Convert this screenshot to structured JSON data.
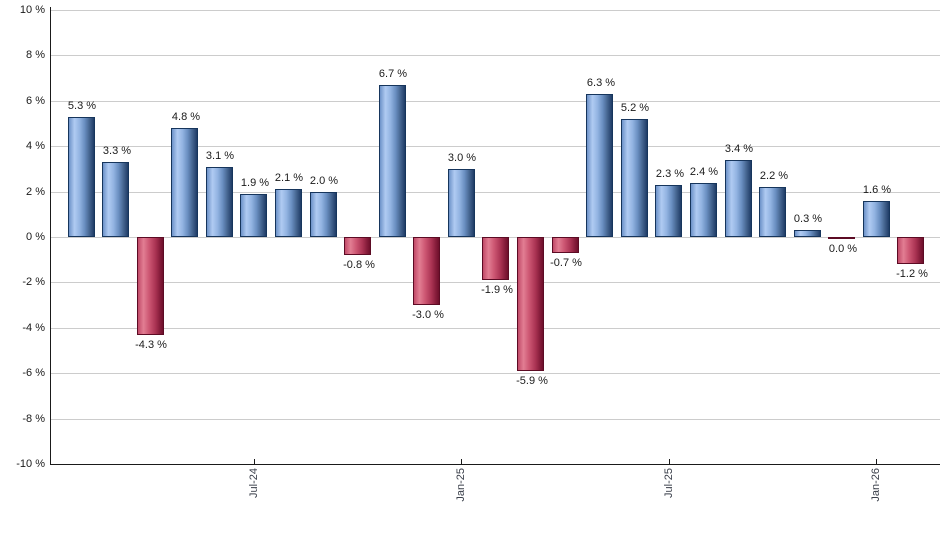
{
  "chart_data": {
    "type": "bar",
    "title": "",
    "xlabel": "",
    "ylabel": "",
    "ylim": [
      -10,
      10
    ],
    "grid": true,
    "legend": "none",
    "values": [
      5.3,
      3.3,
      -4.3,
      4.8,
      3.1,
      1.9,
      2.1,
      2.0,
      -0.8,
      6.7,
      -3.0,
      3.0,
      -1.9,
      -5.9,
      -0.7,
      6.3,
      5.2,
      2.3,
      2.4,
      3.4,
      2.2,
      0.3,
      0.0,
      1.6,
      -1.2
    ],
    "bar_labels": [
      "5.3 %",
      "3.3 %",
      "-4.3 %",
      "4.8 %",
      "3.1 %",
      "1.9 %",
      "2.1 %",
      "2.0 %",
      "-0.8 %",
      "6.7 %",
      "-3.0 %",
      "3.0 %",
      "-1.9 %",
      "-5.9 %",
      "-0.7 %",
      "6.3 %",
      "5.2 %",
      "2.3 %",
      "2.4 %",
      "3.4 %",
      "2.2 %",
      "0.3 %",
      "0.0 %",
      "1.6 %",
      "-1.2 %"
    ],
    "y_ticks": [
      {
        "value": 10,
        "label": "10 %"
      },
      {
        "value": 8,
        "label": "8 %"
      },
      {
        "value": 6,
        "label": "6 %"
      },
      {
        "value": 4,
        "label": "4 %"
      },
      {
        "value": 2,
        "label": "2 %"
      },
      {
        "value": 0,
        "label": "0 %"
      },
      {
        "value": -2,
        "label": "-2 %"
      },
      {
        "value": -4,
        "label": "-4 %"
      },
      {
        "value": -6,
        "label": "-6 %"
      },
      {
        "value": -8,
        "label": "-8 %"
      },
      {
        "value": -10,
        "label": "-10 %"
      }
    ],
    "x_ticks": [
      {
        "label": "Jul-24",
        "bar_index": 5
      },
      {
        "label": "Jan-25",
        "bar_index": 11
      },
      {
        "label": "Jul-25",
        "bar_index": 17
      },
      {
        "label": "Jan-26",
        "bar_index": 23
      }
    ],
    "colors": {
      "positive_bar": "#7fa4d8",
      "positive_bar_highlight": "#b0cbf2",
      "positive_bar_dark": "#1f3c66",
      "negative_bar": "#c14a68",
      "negative_bar_highlight": "#e27e93",
      "negative_bar_dark": "#6e0f2b",
      "gridline": "#cccccc",
      "axis": "#1a1a1a",
      "label_text": "#1a1a1a"
    }
  }
}
